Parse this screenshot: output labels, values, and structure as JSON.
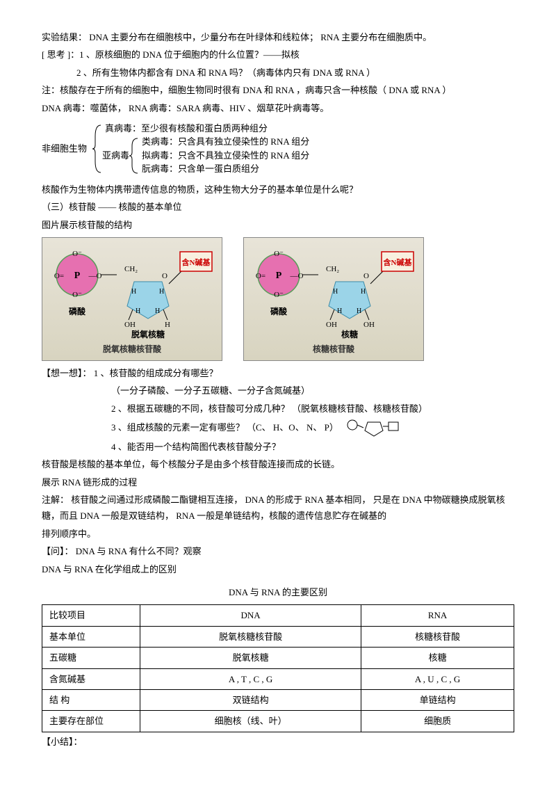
{
  "p1": "实验结果：  DNA  主要分布在细胞核中，少量分布在叶绿体和线粒体；     RNA  主要分布在细胞质中。",
  "p2": "[ 思考 ]：1 、原核细胞的  DNA 位于细胞内的什么位置？——拟核",
  "p3": "2 、所有生物体内都含有   DNA  和  RNA 吗？（病毒体内只有   DNA 或 RNA ）",
  "p4": "注：核酸存在于所有的细胞中，细胞生物同时很有      DNA 和 RNA ，病毒只含一种核酸（   DNA  或 RNA  ）",
  "p5": "DNA 病毒：噬菌体，   RNA 病毒：SARA 病毒、HIV 、烟草花叶病毒等。",
  "bracket_label": "非细胞生物",
  "b1": "真病毒：至少很有核酸和蛋白质两种组分",
  "sub_label": "亚病毒",
  "b2": "类病毒：只含具有独立侵染性的    RNA 组分",
  "b3": "拟病毒：只含不具独立侵染性的    RNA 组分",
  "b4": "朊病毒：只含单一蛋白质组分",
  "p6": "核酸作为生物体内携带遗传信息的物质，这种生物大分子的基本单位是什么呢？",
  "h1": "（三）核苷酸  —— 核酸的基本单位",
  "p7": "图片展示核苷酸的结构",
  "diagram": {
    "base_label": "含N碱基",
    "phosphate": "磷酸",
    "sugar1": "脱氧核糖",
    "sugar2": "核糖",
    "caption1": "脱氧核糖核苷酸",
    "caption2": "核糖核苷酸",
    "colors": {
      "phosphate_fill": "#e670b0",
      "phosphate_stroke": "#5a9b5a",
      "sugar_fill": "#9bd4e8",
      "base_border": "#cc0000"
    }
  },
  "q_label": "【想一想】：",
  "q1": "1 、核苷酸的组成成分有哪些？",
  "a1": "（一分子磷酸、一分子五碳糖、一分子含氮碱基）",
  "q2": "2 、根据五碳糖的不同，核苷酸可分成几种？     （脱氧核糖核苷酸、核糖核苷酸）",
  "q3": "3 、组成核酸的元素一定有哪些？         （C、 H、O、 N、 P）",
  "q4": "4 、能否用一个结构简图代表核苷酸分子？",
  "p8": "核苷酸是核酸的基本单位，每个核酸分子是由多个核苷酸连接而成的长链。",
  "p9": "展示 RNA 链形成的过程",
  "p10": "注解： 核苷酸之间通过形成磷酸二酯键相互连接，  DNA 的形成于 RNA 基本相同，  只是在 DNA 中物碳糖换成脱氧核糖，而且 DNA 一般是双链结构， RNA 一般是单链结构，核酸的遗传信息贮存在碱基的",
  "p11": "排列顺序中。",
  "p12": "【问】： DNA 与 RNA 有什么不同？观察",
  "p13": "DNA 与 RNA 在化学组成上的区别",
  "table_title": "DNA 与 RNA 的主要区别",
  "table": {
    "headers": [
      "比较项目",
      "DNA",
      "RNA"
    ],
    "rows": [
      [
        "基本单位",
        "脱氧核糖核苷酸",
        "核糖核苷酸"
      ],
      [
        "五碳糖",
        "脱氧核糖",
        "核糖"
      ],
      [
        "含氮碱基",
        "A , T , C , G",
        "A , U , C , G"
      ],
      [
        "结    构",
        "双链结构",
        "单链结构"
      ],
      [
        "主要存在部位",
        "细胞核（线、叶）",
        "细胞质"
      ]
    ]
  },
  "p14": "【小结】："
}
